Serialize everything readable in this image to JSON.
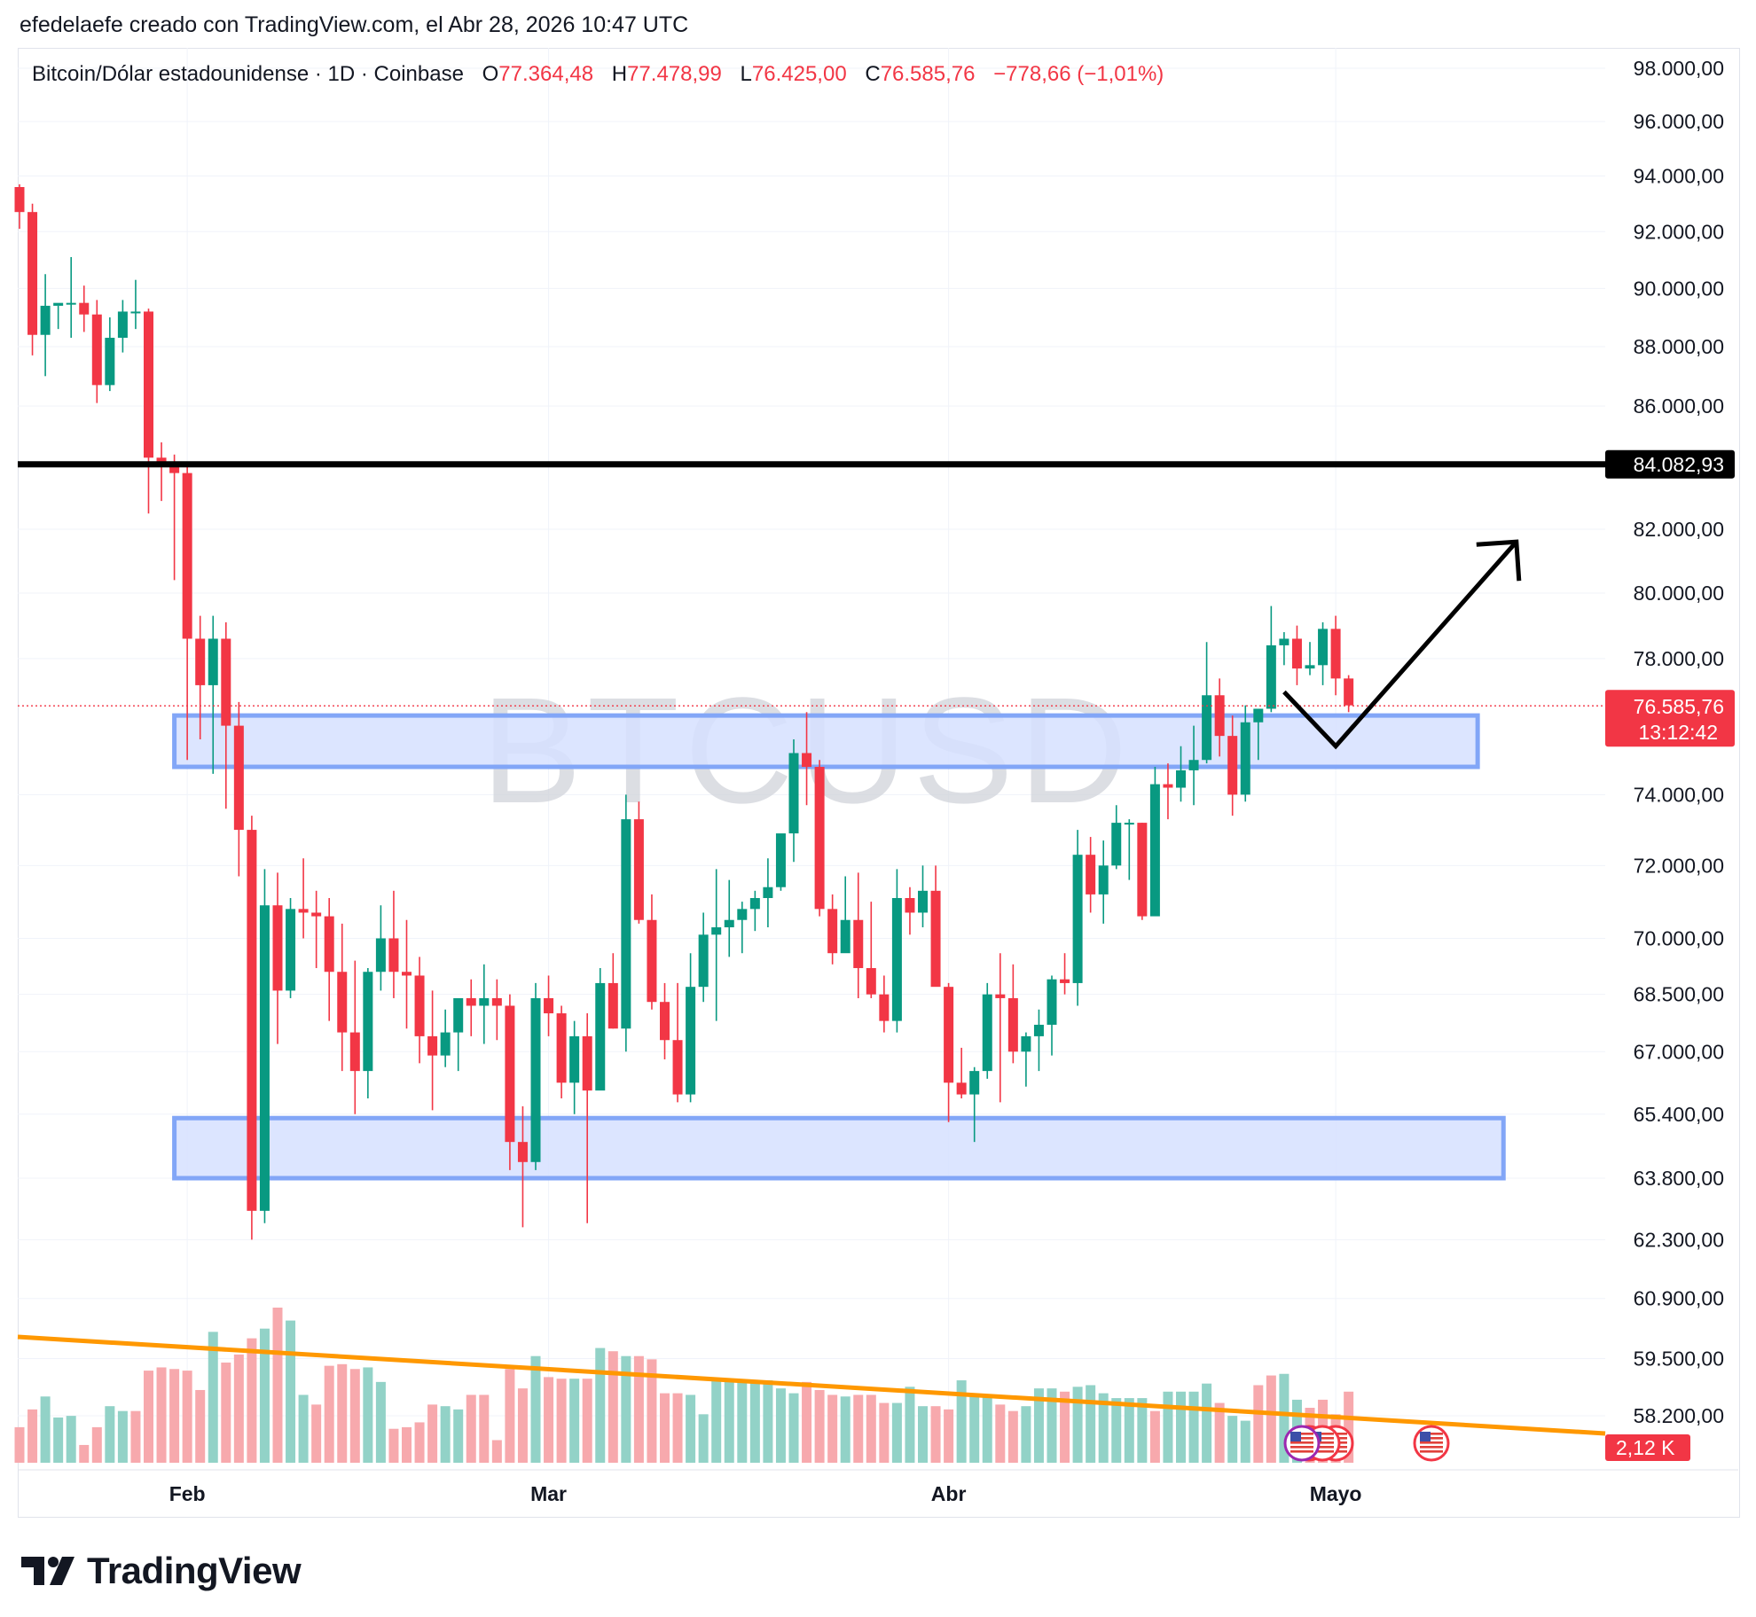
{
  "credit": "efedelaefe creado con TradingView.com, el Abr 28, 2026 10:47 UTC",
  "legend": {
    "symbol": "Bitcoin/Dólar estadounidense · 1D · Coinbase",
    "o_label": "O",
    "o_value": "77.364,48",
    "h_label": "H",
    "h_value": "77.478,99",
    "l_label": "L",
    "l_value": "76.425,00",
    "c_label": "C",
    "c_value": "76.585,76",
    "change": "−778,66 (−1,01%)"
  },
  "watermark": "BTCUSD",
  "brand": "TradingView",
  "colors": {
    "up": "#089981",
    "down": "#f23645",
    "up_vol": "#92d2c7",
    "down_vol": "#f7a9ad",
    "zone_fill": "#d6e0ff",
    "zone_stroke": "#82a6f7",
    "trend": "#ff9800",
    "level": "#000000",
    "grid": "#f0f3fa"
  },
  "chart_data": {
    "type": "candlestick",
    "title": "Bitcoin/Dólar estadounidense · 1D · Coinbase",
    "y_axis": {
      "tick_labels": [
        "98.000,00",
        "96.000,00",
        "94.000,00",
        "92.000,00",
        "90.000,00",
        "88.000,00",
        "86.000,00",
        "82.000,00",
        "80.000,00",
        "78.000,00",
        "74.000,00",
        "72.000,00",
        "70.000,00",
        "68.500,00",
        "67.000,00",
        "65.400,00",
        "63.800,00",
        "62.300,00",
        "60.900,00",
        "59.500,00",
        "58.200,00"
      ],
      "tick_values": [
        98000,
        96000,
        94000,
        92000,
        90000,
        88000,
        86000,
        82000,
        80000,
        78000,
        74000,
        72000,
        70000,
        68500,
        67000,
        65400,
        63800,
        62300,
        60900,
        59500,
        58200
      ],
      "scale": "log",
      "range": [
        57800,
        98500
      ]
    },
    "x_axis": {
      "tick_labels": [
        "Feb",
        "Mar",
        "Abr",
        "Mayo"
      ],
      "tick_dates": [
        "2026-02-01",
        "2026-03-01",
        "2026-04-01",
        "2026-05-01"
      ]
    },
    "start_date": "2026-01-19",
    "candles_ohlc": [
      [
        93600,
        93700,
        92100,
        92700
      ],
      [
        92700,
        93000,
        87700,
        88400
      ],
      [
        88400,
        90500,
        87000,
        89400
      ],
      [
        89400,
        89400,
        88600,
        89500
      ],
      [
        89500,
        91100,
        88300,
        89500
      ],
      [
        89500,
        90100,
        88500,
        89100
      ],
      [
        89100,
        89600,
        86100,
        86700
      ],
      [
        86700,
        89000,
        86500,
        88300
      ],
      [
        88300,
        89600,
        87800,
        89200
      ],
      [
        89200,
        90300,
        88600,
        89200
      ],
      [
        89200,
        89300,
        82500,
        84300
      ],
      [
        84300,
        84800,
        82900,
        84000
      ],
      [
        84000,
        84400,
        80400,
        83800
      ],
      [
        83800,
        84000,
        75000,
        78600
      ],
      [
        78600,
        79300,
        75600,
        77200
      ],
      [
        77200,
        79300,
        74600,
        78600
      ],
      [
        78600,
        79100,
        73600,
        76000
      ],
      [
        76000,
        76700,
        71700,
        73000
      ],
      [
        73000,
        73400,
        62300,
        63000
      ],
      [
        63000,
        71900,
        62700,
        70900
      ],
      [
        70900,
        71800,
        67200,
        68600
      ],
      [
        68600,
        71100,
        68400,
        70800
      ],
      [
        70800,
        72200,
        70000,
        70700
      ],
      [
        70700,
        71300,
        69200,
        70600
      ],
      [
        70600,
        71100,
        67800,
        69100
      ],
      [
        69100,
        70400,
        66500,
        67500
      ],
      [
        67500,
        69400,
        65400,
        66500
      ],
      [
        66500,
        69200,
        65800,
        69100
      ],
      [
        69100,
        70900,
        68600,
        70000
      ],
      [
        70000,
        71300,
        68400,
        69100
      ],
      [
        69100,
        70500,
        67600,
        69000
      ],
      [
        69000,
        69500,
        66700,
        67400
      ],
      [
        67400,
        68600,
        65500,
        66900
      ],
      [
        66900,
        68100,
        66600,
        67500
      ],
      [
        67500,
        68300,
        66500,
        68400
      ],
      [
        68400,
        68900,
        67400,
        68200
      ],
      [
        68200,
        69300,
        67200,
        68400
      ],
      [
        68400,
        68900,
        67300,
        68200
      ],
      [
        68200,
        68500,
        64000,
        64700
      ],
      [
        64700,
        65600,
        62600,
        64200
      ],
      [
        64200,
        68800,
        64000,
        68400
      ],
      [
        68400,
        69000,
        67400,
        68000
      ],
      [
        68000,
        68200,
        65800,
        66200
      ],
      [
        66200,
        67800,
        65400,
        67400
      ],
      [
        67400,
        68000,
        62700,
        66000
      ],
      [
        66000,
        69200,
        66100,
        68800
      ],
      [
        68800,
        69600,
        67600,
        67600
      ],
      [
        67600,
        74000,
        67000,
        73300
      ],
      [
        73300,
        73800,
        70400,
        70500
      ],
      [
        70500,
        71200,
        68100,
        68300
      ],
      [
        68300,
        68800,
        66800,
        67300
      ],
      [
        67300,
        68800,
        65700,
        65900
      ],
      [
        65900,
        69600,
        65700,
        68700
      ],
      [
        68700,
        70700,
        68300,
        70100
      ],
      [
        70100,
        71900,
        67800,
        70300
      ],
      [
        70300,
        71600,
        69500,
        70500
      ],
      [
        70500,
        71000,
        69600,
        70800
      ],
      [
        70800,
        71300,
        70200,
        71100
      ],
      [
        71100,
        72200,
        70300,
        71400
      ],
      [
        71400,
        72800,
        71300,
        72900
      ],
      [
        72900,
        75600,
        72100,
        75200
      ],
      [
        75200,
        76400,
        73700,
        74800
      ],
      [
        74800,
        75000,
        70600,
        70800
      ],
      [
        70800,
        71200,
        69300,
        69600
      ],
      [
        69600,
        71700,
        69700,
        70500
      ],
      [
        70500,
        71800,
        68400,
        69200
      ],
      [
        69200,
        71000,
        68400,
        68500
      ],
      [
        68500,
        69000,
        67500,
        67800
      ],
      [
        67800,
        71900,
        67500,
        71100
      ],
      [
        71100,
        71400,
        70100,
        70700
      ],
      [
        70700,
        72000,
        70300,
        71300
      ],
      [
        71300,
        72000,
        68900,
        68700
      ],
      [
        68700,
        68800,
        65200,
        66200
      ],
      [
        66200,
        67100,
        65800,
        65900
      ],
      [
        65900,
        66600,
        64700,
        66500
      ],
      [
        66500,
        68800,
        66300,
        68500
      ],
      [
        68500,
        69600,
        65700,
        68400
      ],
      [
        68400,
        69300,
        66700,
        67000
      ],
      [
        67000,
        67500,
        66100,
        67400
      ],
      [
        67400,
        68100,
        66500,
        67700
      ],
      [
        67700,
        69000,
        66900,
        68900
      ],
      [
        68900,
        69600,
        68500,
        68800
      ],
      [
        68800,
        73000,
        68200,
        72300
      ],
      [
        72300,
        72800,
        70700,
        71200
      ],
      [
        71200,
        72700,
        70400,
        72000
      ],
      [
        72000,
        73700,
        71900,
        73200
      ],
      [
        73200,
        73300,
        71600,
        73200
      ],
      [
        73200,
        73200,
        70500,
        70600
      ],
      [
        70600,
        74800,
        70700,
        74300
      ],
      [
        74300,
        74900,
        73300,
        74200
      ],
      [
        74200,
        75400,
        73800,
        74700
      ],
      [
        74700,
        76000,
        73700,
        75000
      ],
      [
        75000,
        78500,
        74900,
        76900
      ],
      [
        76900,
        77400,
        75100,
        75700
      ],
      [
        75700,
        76300,
        73400,
        74000
      ],
      [
        74000,
        76600,
        73800,
        76100
      ],
      [
        76100,
        76300,
        75000,
        76500
      ],
      [
        76500,
        79600,
        76400,
        78400
      ],
      [
        78400,
        78800,
        77800,
        78600
      ],
      [
        78600,
        79000,
        77200,
        77700
      ],
      [
        77700,
        78500,
        77500,
        77800
      ],
      [
        77800,
        79100,
        77200,
        78900
      ],
      [
        78900,
        79300,
        76900,
        77400
      ],
      [
        77400,
        77500,
        76400,
        76600
      ]
    ],
    "volume_direction": [
      "dn",
      "dn",
      "up",
      "up",
      "up",
      "dn",
      "dn",
      "up",
      "up",
      "dn",
      "dn",
      "dn",
      "dn",
      "dn",
      "dn",
      "up",
      "dn",
      "dn",
      "dn",
      "up",
      "dn",
      "up",
      "up",
      "dn",
      "dn",
      "dn",
      "dn",
      "up",
      "up",
      "dn",
      "dn",
      "dn",
      "dn",
      "up",
      "up",
      "dn",
      "dn",
      "dn",
      "dn",
      "dn",
      "up",
      "dn",
      "dn",
      "up",
      "dn",
      "up",
      "dn",
      "up",
      "dn",
      "dn",
      "dn",
      "dn",
      "up",
      "up",
      "up",
      "up",
      "up",
      "up",
      "up",
      "up",
      "up",
      "dn",
      "dn",
      "dn",
      "up",
      "dn",
      "dn",
      "dn",
      "up",
      "up",
      "up",
      "dn",
      "dn",
      "up",
      "up",
      "up",
      "dn",
      "dn",
      "up",
      "up",
      "up",
      "dn",
      "up",
      "up",
      "up",
      "up",
      "up",
      "up",
      "dn",
      "up",
      "up",
      "up",
      "up",
      "dn",
      "up",
      "up",
      "dn",
      "dn",
      "up",
      "up",
      "dn",
      "dn",
      "dn",
      "dn"
    ],
    "volume": [
      22,
      33,
      41,
      28,
      29,
      11,
      22,
      35,
      32,
      32,
      57,
      59,
      58,
      57,
      45,
      81,
      62,
      67,
      77,
      83,
      96,
      88,
      42,
      36,
      60,
      61,
      58,
      59,
      50,
      21,
      22,
      25,
      36,
      35,
      33,
      42,
      42,
      14,
      58,
      46,
      66,
      53,
      52,
      52,
      52,
      71,
      69,
      66,
      66,
      64,
      43,
      43,
      42,
      30,
      52,
      52,
      51,
      51,
      51,
      46,
      43,
      50,
      45,
      42,
      41,
      42,
      42,
      37,
      37,
      47,
      35,
      35,
      33,
      51,
      41,
      42,
      36,
      32,
      35,
      46,
      46,
      44,
      47,
      48,
      43,
      40,
      40,
      40,
      32,
      44,
      44,
      44,
      49,
      37,
      29,
      26,
      48,
      54,
      55,
      39,
      34,
      39,
      30,
      44
    ],
    "levels": [
      {
        "price": 84082.93,
        "label": "84.082,93"
      }
    ],
    "last_price": {
      "price": 76585.76,
      "label": "76.585,76",
      "countdown": "13:12:42"
    },
    "volume_label": "2,12 K",
    "zones": [
      {
        "top": 76300,
        "bottom": 74800,
        "from": "2026-01-31",
        "to": "2026-05-12"
      },
      {
        "top": 65300,
        "bottom": 63800,
        "from": "2026-01-31",
        "to": "2026-05-14"
      }
    ],
    "projection": [
      {
        "date": "2026-04-27",
        "price": 77000
      },
      {
        "date": "2026-05-01",
        "price": 75400
      },
      {
        "date": "2026-05-15",
        "price": 81600
      }
    ],
    "grid": true
  }
}
